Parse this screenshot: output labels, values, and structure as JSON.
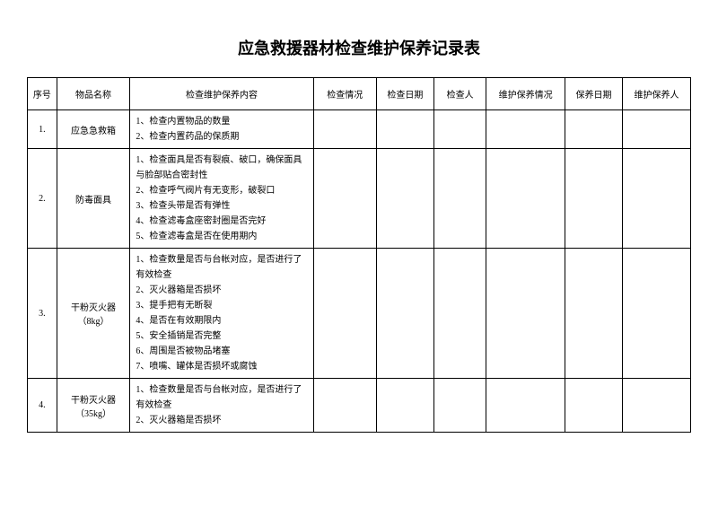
{
  "title": "应急救援器材检查维护保养记录表",
  "headers": {
    "seq": "序号",
    "name": "物品名称",
    "content": "检查维护保养内容",
    "checkStatus": "检查情况",
    "checkDate": "检查日期",
    "checker": "检查人",
    "maintStatus": "维护保养情况",
    "maintDate": "保养日期",
    "maintPerson": "维护保养人"
  },
  "rows": [
    {
      "seq": "1.",
      "name": "应急急救箱",
      "content": "1、检查内置物品的数量\n2、检查内置药品的保质期"
    },
    {
      "seq": "2.",
      "name": "防毒面具",
      "content": "1、检查面具是否有裂痕、破口，确保面具与脸部贴合密封性\n2、检查呼气阀片有无变形，破裂口\n3、检查头带是否有弹性\n4、检查滤毒盒座密封圈是否完好\n5、检查滤毒盒是否在使用期内"
    },
    {
      "seq": "3.",
      "name": "干粉灭火器（8kg）",
      "content": "1、检查数量是否与台帐对应，是否进行了有效检查\n2、灭火器箱是否损坏\n3、提手把有无断裂\n4、是否在有效期限内\n5、安全插销是否完整\n6、周围是否被物品堵塞\n7、喷嘴、罐体是否损坏或腐蚀"
    },
    {
      "seq": "4.",
      "name": "干粉灭火器（35kg）",
      "content": "1、检查数量是否与台帐对应，是否进行了有效检查\n2、灭火器箱是否损坏"
    }
  ]
}
